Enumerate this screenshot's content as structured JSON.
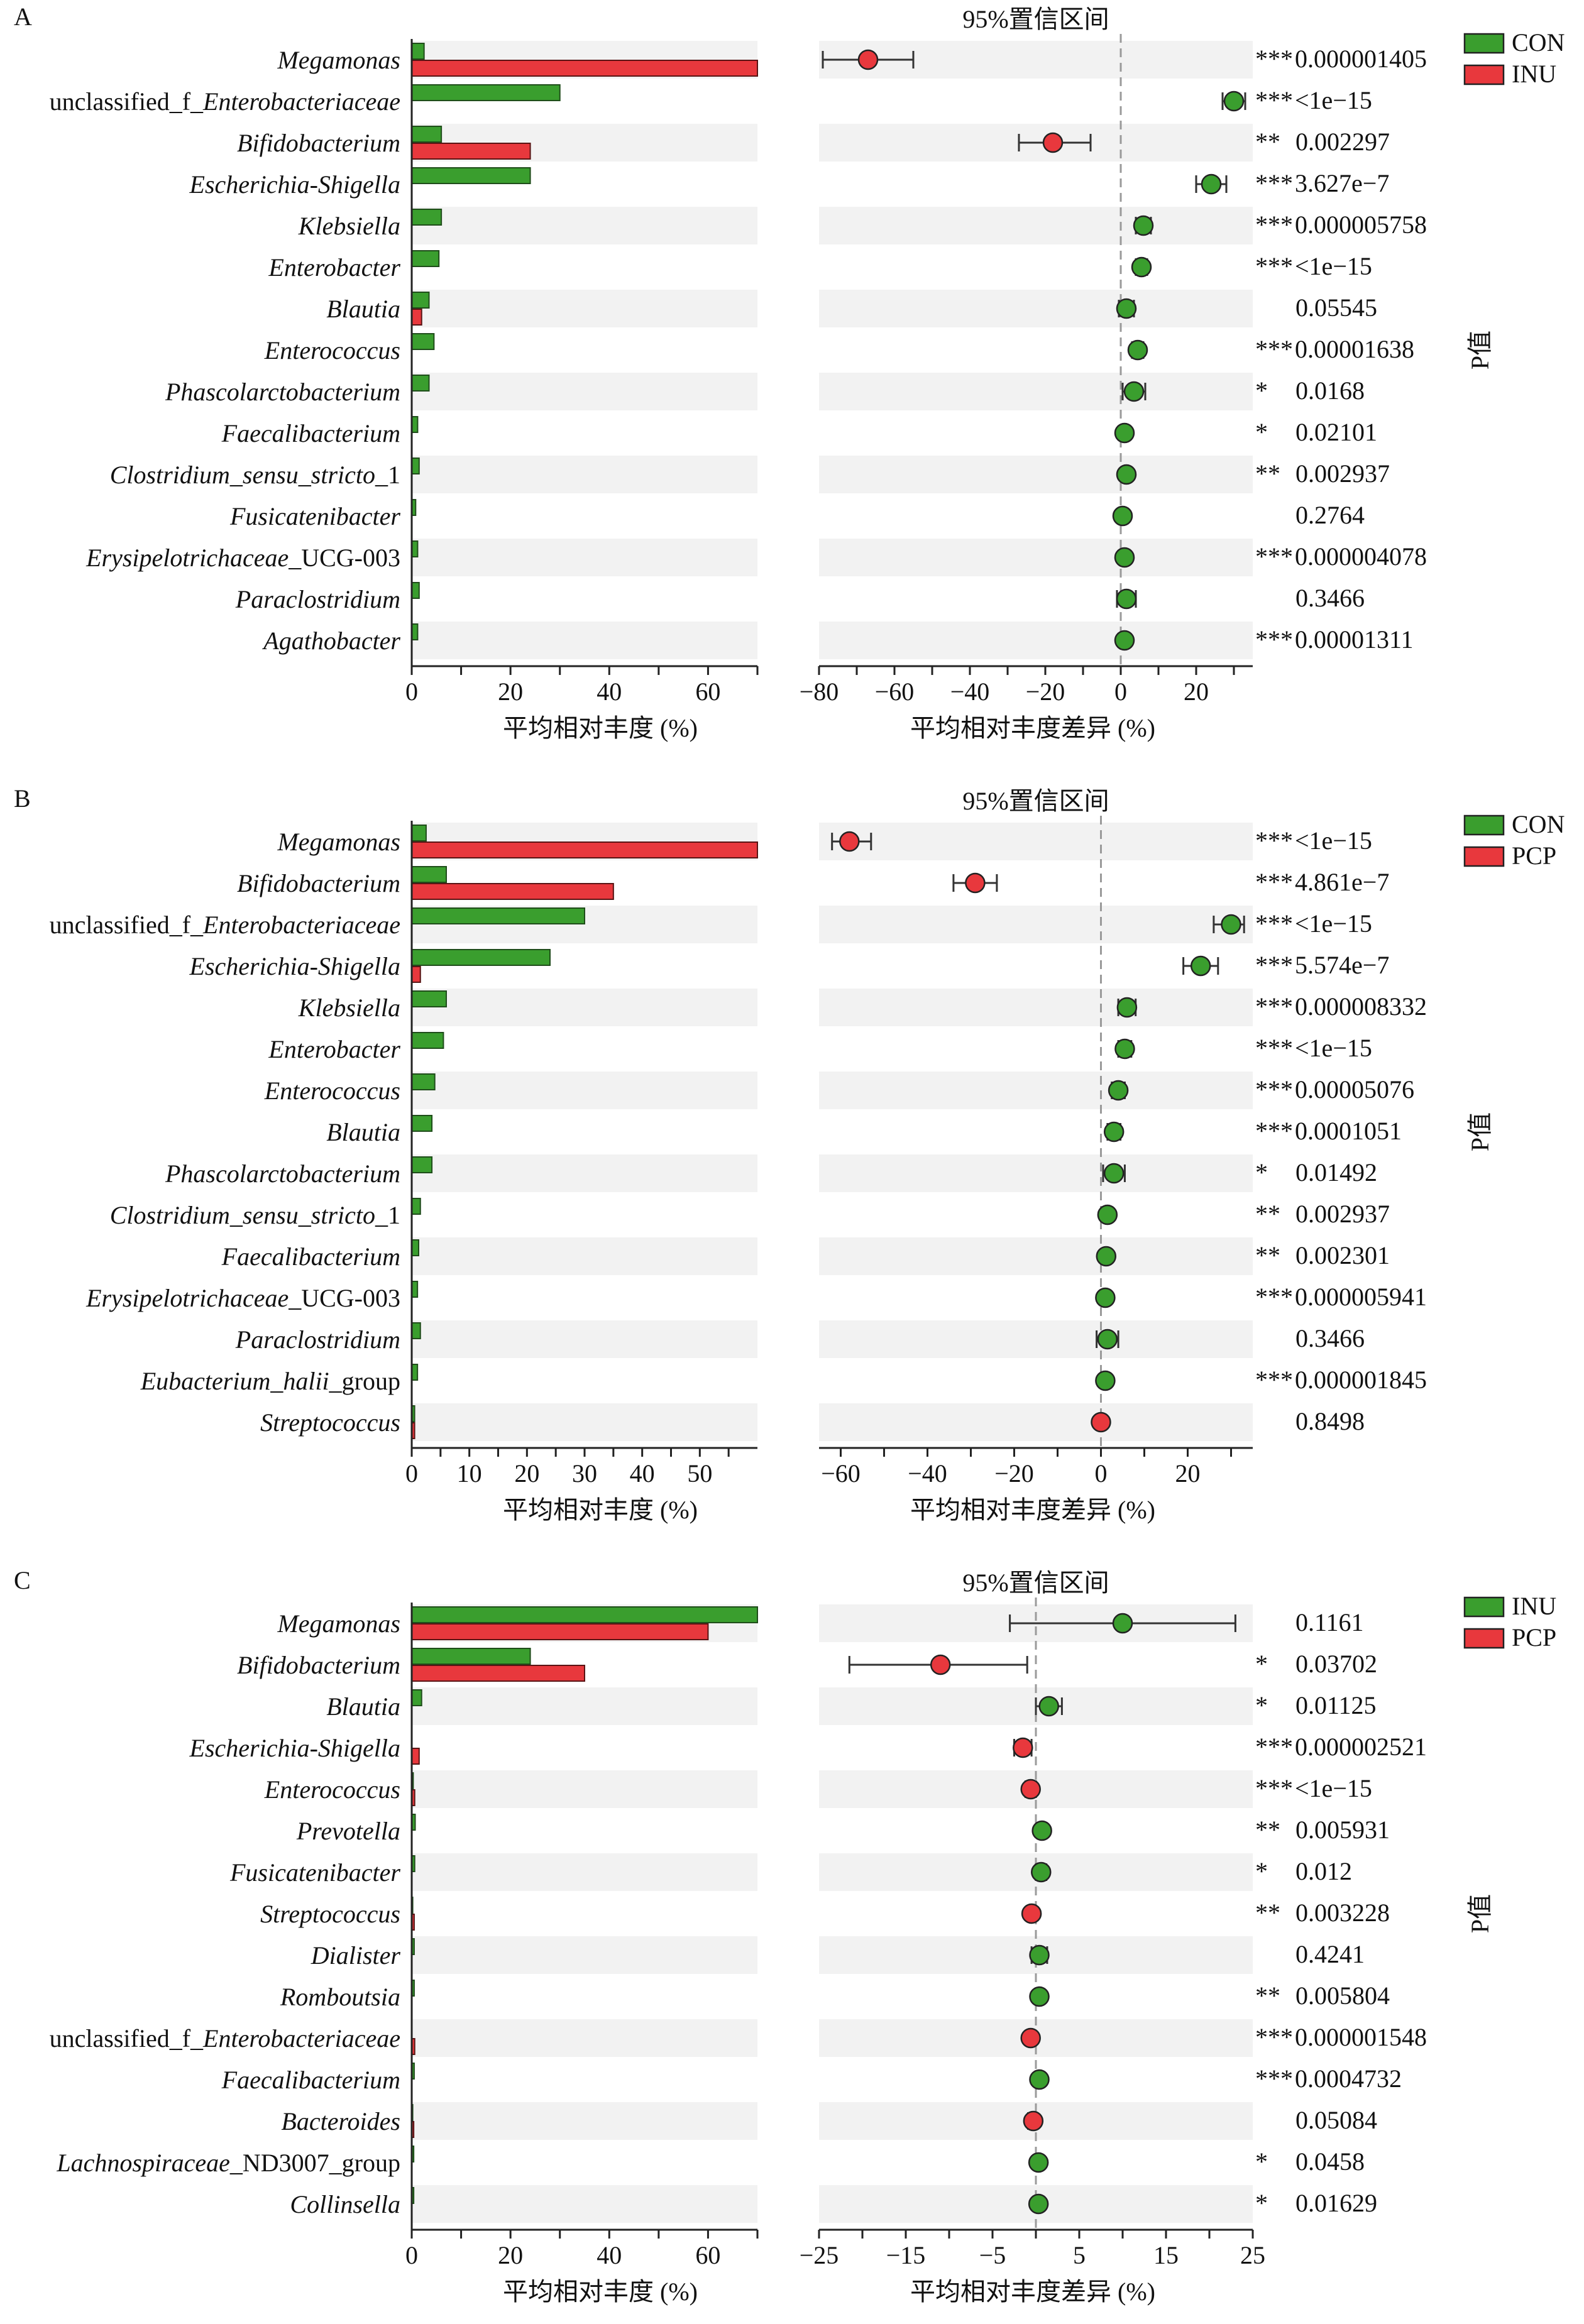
{
  "colors": {
    "green": "#3a9e2e",
    "red": "#e8383d",
    "stripe": "#f2f2f2",
    "dashed": "#9a9a9a",
    "ci_line": "#333333"
  },
  "chart_data": [
    {
      "panel_label": "A",
      "type": "bar",
      "ci_title": "95%置信区间",
      "xlabel_left": "平均相对丰度 (%)",
      "xlabel_right": "平均相对丰度差异 (%)",
      "pvalue_label": "P值",
      "legend": [
        {
          "name": "CON",
          "color": "green"
        },
        {
          "name": "INU",
          "color": "red"
        }
      ],
      "left_axis": {
        "min": 0,
        "max": 70,
        "ticks": [
          0,
          20,
          40,
          60
        ],
        "minor_ticks": [
          10,
          30,
          50,
          70
        ]
      },
      "right_axis": {
        "min": -80,
        "max": 35,
        "ticks": [
          -80,
          -60,
          -40,
          -20,
          0,
          20
        ],
        "minor_ticks": [
          -70,
          -50,
          -30,
          -10,
          10,
          30
        ]
      },
      "rows": [
        {
          "name": "Megamonas",
          "italic": "Megamonas",
          "suffix": "",
          "prefix": "",
          "g1": 2.5,
          "g2": 70,
          "diff": -67,
          "ci": [
            -79,
            -55
          ],
          "dot": "red",
          "stars": "***",
          "p": "0.000001405"
        },
        {
          "name": "unclassified_f_Enterobacteriaceae",
          "prefix": "unclassified_f_",
          "italic": "Enterobacteriaceae",
          "suffix": "",
          "g1": 30,
          "g2": 0,
          "diff": 30,
          "ci": [
            27,
            33
          ],
          "dot": "green",
          "stars": "***",
          "p": "<1e−15"
        },
        {
          "name": "Bifidobacterium",
          "prefix": "",
          "italic": "Bifidobacterium",
          "suffix": "",
          "g1": 6,
          "g2": 24,
          "diff": -18,
          "ci": [
            -27,
            -8
          ],
          "dot": "red",
          "stars": "**",
          "p": "0.002297"
        },
        {
          "name": "Escherichia-Shigella",
          "prefix": "",
          "italic": "Escherichia-Shigella",
          "suffix": "",
          "g1": 24,
          "g2": 0,
          "diff": 24,
          "ci": [
            20,
            28
          ],
          "dot": "green",
          "stars": "***",
          "p": "3.627e−7"
        },
        {
          "name": "Klebsiella",
          "prefix": "",
          "italic": "Klebsiella",
          "suffix": "",
          "g1": 6,
          "g2": 0,
          "diff": 6,
          "ci": [
            4,
            8
          ],
          "dot": "green",
          "stars": "***",
          "p": "0.000005758"
        },
        {
          "name": "Enterobacter",
          "prefix": "",
          "italic": "Enterobacter",
          "suffix": "",
          "g1": 5.5,
          "g2": 0,
          "diff": 5.5,
          "ci": [
            4,
            7
          ],
          "dot": "green",
          "stars": "***",
          "p": "<1e−15"
        },
        {
          "name": "Blautia",
          "prefix": "",
          "italic": "Blautia",
          "suffix": "",
          "g1": 3.5,
          "g2": 2,
          "diff": 1.5,
          "ci": [
            -0.5,
            3.5
          ],
          "dot": "green",
          "stars": "",
          "p": "0.05545"
        },
        {
          "name": "Enterococcus",
          "prefix": "",
          "italic": "Enterococcus",
          "suffix": "",
          "g1": 4.5,
          "g2": 0,
          "diff": 4.5,
          "ci": [
            3,
            6
          ],
          "dot": "green",
          "stars": "***",
          "p": "0.00001638"
        },
        {
          "name": "Phascolarctobacterium",
          "prefix": "",
          "italic": "Phascolarctobacterium",
          "suffix": "",
          "g1": 3.5,
          "g2": 0,
          "diff": 3.5,
          "ci": [
            0.5,
            6.5
          ],
          "dot": "green",
          "stars": "*",
          "p": "0.0168"
        },
        {
          "name": "Faecalibacterium",
          "prefix": "",
          "italic": "Faecalibacterium",
          "suffix": "",
          "g1": 1.2,
          "g2": 0,
          "diff": 1,
          "ci": [
            0,
            2
          ],
          "dot": "green",
          "stars": "*",
          "p": "0.02101"
        },
        {
          "name": "Clostridium_sensu_stricto_1",
          "prefix": "",
          "italic": "Clostridium_sensu_stricto",
          "suffix": "_1",
          "g1": 1.5,
          "g2": 0,
          "diff": 1.5,
          "ci": [
            0.5,
            2.5
          ],
          "dot": "green",
          "stars": "**",
          "p": "0.002937"
        },
        {
          "name": "Fusicatenibacter",
          "prefix": "",
          "italic": "Fusicatenibacter",
          "suffix": "",
          "g1": 0.8,
          "g2": 0,
          "diff": 0.5,
          "ci": [
            -0.5,
            1.5
          ],
          "dot": "green",
          "stars": "",
          "p": "0.2764"
        },
        {
          "name": "Erysipelotrichaceae_UCG-003",
          "prefix": "",
          "italic": "Erysipelotrichaceae",
          "suffix": "_UCG-003",
          "g1": 1.2,
          "g2": 0,
          "diff": 1,
          "ci": [
            0.3,
            1.7
          ],
          "dot": "green",
          "stars": "***",
          "p": "0.000004078"
        },
        {
          "name": "Paraclostridium",
          "prefix": "",
          "italic": "Paraclostridium",
          "suffix": "",
          "g1": 1.5,
          "g2": 0,
          "diff": 1.5,
          "ci": [
            -1,
            4
          ],
          "dot": "green",
          "stars": "",
          "p": "0.3466"
        },
        {
          "name": "Agathobacter",
          "prefix": "",
          "italic": "Agathobacter",
          "suffix": "",
          "g1": 1.2,
          "g2": 0,
          "diff": 1,
          "ci": [
            0.3,
            1.7
          ],
          "dot": "green",
          "stars": "***",
          "p": "0.00001311"
        }
      ]
    },
    {
      "panel_label": "B",
      "type": "bar",
      "ci_title": "95%置信区间",
      "xlabel_left": "平均相对丰度 (%)",
      "xlabel_right": "平均相对丰度差异 (%)",
      "pvalue_label": "P值",
      "legend": [
        {
          "name": "CON",
          "color": "green"
        },
        {
          "name": "PCP",
          "color": "red"
        }
      ],
      "left_axis": {
        "min": 0,
        "max": 60,
        "ticks": [
          0,
          10,
          20,
          30,
          40,
          50
        ],
        "minor_ticks": [
          5,
          15,
          25,
          35,
          45,
          55
        ]
      },
      "right_axis": {
        "min": -65,
        "max": 35,
        "ticks": [
          -60,
          -40,
          -20,
          0,
          20
        ],
        "minor_ticks": [
          -50,
          -30,
          -10,
          10,
          30
        ]
      },
      "rows": [
        {
          "name": "Megamonas",
          "prefix": "",
          "italic": "Megamonas",
          "suffix": "",
          "g1": 2.5,
          "g2": 60,
          "diff": -58,
          "ci": [
            -62,
            -53
          ],
          "dot": "red",
          "stars": "***",
          "p": "<1e−15"
        },
        {
          "name": "Bifidobacterium",
          "prefix": "",
          "italic": "Bifidobacterium",
          "suffix": "",
          "g1": 6,
          "g2": 35,
          "diff": -29,
          "ci": [
            -34,
            -24
          ],
          "dot": "red",
          "stars": "***",
          "p": "4.861e−7"
        },
        {
          "name": "unclassified_f_Enterobacteriaceae",
          "prefix": "unclassified_f_",
          "italic": "Enterobacteriaceae",
          "suffix": "",
          "g1": 30,
          "g2": 0,
          "diff": 30,
          "ci": [
            26,
            33
          ],
          "dot": "green",
          "stars": "***",
          "p": "<1e−15"
        },
        {
          "name": "Escherichia-Shigella",
          "prefix": "",
          "italic": "Escherichia-Shigella",
          "suffix": "",
          "g1": 24,
          "g2": 1.5,
          "diff": 23,
          "ci": [
            19,
            27
          ],
          "dot": "green",
          "stars": "***",
          "p": "5.574e−7"
        },
        {
          "name": "Klebsiella",
          "prefix": "",
          "italic": "Klebsiella",
          "suffix": "",
          "g1": 6,
          "g2": 0,
          "diff": 6,
          "ci": [
            4,
            8
          ],
          "dot": "green",
          "stars": "***",
          "p": "0.000008332"
        },
        {
          "name": "Enterobacter",
          "prefix": "",
          "italic": "Enterobacter",
          "suffix": "",
          "g1": 5.5,
          "g2": 0,
          "diff": 5.5,
          "ci": [
            4,
            7
          ],
          "dot": "green",
          "stars": "***",
          "p": "<1e−15"
        },
        {
          "name": "Enterococcus",
          "prefix": "",
          "italic": "Enterococcus",
          "suffix": "",
          "g1": 4,
          "g2": 0,
          "diff": 4,
          "ci": [
            2.5,
            5.5
          ],
          "dot": "green",
          "stars": "***",
          "p": "0.00005076"
        },
        {
          "name": "Blautia",
          "prefix": "",
          "italic": "Blautia",
          "suffix": "",
          "g1": 3.5,
          "g2": 0,
          "diff": 3,
          "ci": [
            1.5,
            4.5
          ],
          "dot": "green",
          "stars": "***",
          "p": "0.0001051"
        },
        {
          "name": "Phascolarctobacterium",
          "prefix": "",
          "italic": "Phascolarctobacterium",
          "suffix": "",
          "g1": 3.5,
          "g2": 0,
          "diff": 3,
          "ci": [
            0.5,
            5.5
          ],
          "dot": "green",
          "stars": "*",
          "p": "0.01492"
        },
        {
          "name": "Clostridium_sensu_stricto_1",
          "prefix": "",
          "italic": "Clostridium_sensu_stricto",
          "suffix": "_1",
          "g1": 1.5,
          "g2": 0,
          "diff": 1.5,
          "ci": [
            0.5,
            2.5
          ],
          "dot": "green",
          "stars": "**",
          "p": "0.002937"
        },
        {
          "name": "Faecalibacterium",
          "prefix": "",
          "italic": "Faecalibacterium",
          "suffix": "",
          "g1": 1.2,
          "g2": 0,
          "diff": 1.2,
          "ci": [
            0.4,
            2
          ],
          "dot": "green",
          "stars": "**",
          "p": "0.002301"
        },
        {
          "name": "Erysipelotrichaceae_UCG-003",
          "prefix": "",
          "italic": "Erysipelotrichaceae",
          "suffix": "_UCG-003",
          "g1": 1,
          "g2": 0,
          "diff": 1,
          "ci": [
            0.3,
            1.7
          ],
          "dot": "green",
          "stars": "***",
          "p": "0.000005941"
        },
        {
          "name": "Paraclostridium",
          "prefix": "",
          "italic": "Paraclostridium",
          "suffix": "",
          "g1": 1.5,
          "g2": 0,
          "diff": 1.5,
          "ci": [
            -1,
            4
          ],
          "dot": "green",
          "stars": "",
          "p": "0.3466"
        },
        {
          "name": "Eubacterium_halii_group",
          "prefix": "",
          "italic": "Eubacterium_halii",
          "suffix": "_group",
          "g1": 1,
          "g2": 0,
          "diff": 1,
          "ci": [
            0.3,
            1.7
          ],
          "dot": "green",
          "stars": "***",
          "p": "0.000001845"
        },
        {
          "name": "Streptococcus",
          "prefix": "",
          "italic": "Streptococcus",
          "suffix": "",
          "g1": 0.5,
          "g2": 0.5,
          "diff": 0,
          "ci": [
            -1,
            1
          ],
          "dot": "red",
          "stars": "",
          "p": "0.8498"
        }
      ]
    },
    {
      "panel_label": "C",
      "type": "bar",
      "ci_title": "95%置信区间",
      "xlabel_left": "平均相对丰度 (%)",
      "xlabel_right": "平均相对丰度差异 (%)",
      "pvalue_label": "P值",
      "legend": [
        {
          "name": "INU",
          "color": "green"
        },
        {
          "name": "PCP",
          "color": "red"
        }
      ],
      "left_axis": {
        "min": 0,
        "max": 70,
        "ticks": [
          0,
          20,
          40,
          60
        ],
        "minor_ticks": [
          10,
          30,
          50,
          70
        ]
      },
      "right_axis": {
        "min": -25,
        "max": 25,
        "ticks": [
          -25,
          -15,
          -5,
          5,
          15,
          25
        ],
        "minor_ticks": [
          -20,
          -10,
          0,
          10,
          20
        ]
      },
      "rows": [
        {
          "name": "Megamonas",
          "prefix": "",
          "italic": "Megamonas",
          "suffix": "",
          "g1": 70,
          "g2": 60,
          "diff": 10,
          "ci": [
            -3,
            23
          ],
          "dot": "green",
          "stars": "",
          "p": "0.1161"
        },
        {
          "name": "Bifidobacterium",
          "prefix": "",
          "italic": "Bifidobacterium",
          "suffix": "",
          "g1": 24,
          "g2": 35,
          "diff": -11,
          "ci": [
            -21.5,
            -1
          ],
          "dot": "red",
          "stars": "*",
          "p": "0.03702"
        },
        {
          "name": "Blautia",
          "prefix": "",
          "italic": "Blautia",
          "suffix": "",
          "g1": 2,
          "g2": 0,
          "diff": 1.5,
          "ci": [
            0,
            3
          ],
          "dot": "green",
          "stars": "*",
          "p": "0.01125"
        },
        {
          "name": "Escherichia-Shigella",
          "prefix": "",
          "italic": "Escherichia-Shigella",
          "suffix": "",
          "g1": 0,
          "g2": 1.5,
          "diff": -1.5,
          "ci": [
            -2.5,
            -0.5
          ],
          "dot": "red",
          "stars": "***",
          "p": "0.000002521"
        },
        {
          "name": "Enterococcus",
          "prefix": "",
          "italic": "Enterococcus",
          "suffix": "",
          "g1": 0.3,
          "g2": 0.6,
          "diff": -0.6,
          "ci": [
            -1.2,
            0
          ],
          "dot": "red",
          "stars": "***",
          "p": "<1e−15"
        },
        {
          "name": "Prevotella",
          "prefix": "",
          "italic": "Prevotella",
          "suffix": "",
          "g1": 0.7,
          "g2": 0,
          "diff": 0.7,
          "ci": [
            0.2,
            1.2
          ],
          "dot": "green",
          "stars": "**",
          "p": "0.005931"
        },
        {
          "name": "Fusicatenibacter",
          "prefix": "",
          "italic": "Fusicatenibacter",
          "suffix": "",
          "g1": 0.6,
          "g2": 0,
          "diff": 0.6,
          "ci": [
            0,
            1.2
          ],
          "dot": "green",
          "stars": "*",
          "p": "0.012"
        },
        {
          "name": "Streptococcus",
          "prefix": "",
          "italic": "Streptococcus",
          "suffix": "",
          "g1": 0.2,
          "g2": 0.5,
          "diff": -0.5,
          "ci": [
            -1,
            0
          ],
          "dot": "red",
          "stars": "**",
          "p": "0.003228"
        },
        {
          "name": "Dialister",
          "prefix": "",
          "italic": "Dialister",
          "suffix": "",
          "g1": 0.5,
          "g2": 0,
          "diff": 0.4,
          "ci": [
            -0.5,
            1.3
          ],
          "dot": "green",
          "stars": "",
          "p": "0.4241"
        },
        {
          "name": "Romboutsia",
          "prefix": "",
          "italic": "Romboutsia",
          "suffix": "",
          "g1": 0.5,
          "g2": 0,
          "diff": 0.4,
          "ci": [
            0.1,
            0.8
          ],
          "dot": "green",
          "stars": "**",
          "p": "0.005804"
        },
        {
          "name": "unclassified_f_Enterobacteriaceae",
          "prefix": "unclassified_f_",
          "italic": "Enterobacteriaceae",
          "suffix": "",
          "g1": 0,
          "g2": 0.6,
          "diff": -0.6,
          "ci": [
            -1,
            -0.2
          ],
          "dot": "red",
          "stars": "***",
          "p": "0.000001548"
        },
        {
          "name": "Faecalibacterium",
          "prefix": "",
          "italic": "Faecalibacterium",
          "suffix": "",
          "g1": 0.5,
          "g2": 0,
          "diff": 0.4,
          "ci": [
            0.1,
            0.7
          ],
          "dot": "green",
          "stars": "***",
          "p": "0.0004732"
        },
        {
          "name": "Bacteroides",
          "prefix": "",
          "italic": "Bacteroides",
          "suffix": "",
          "g1": 0.2,
          "g2": 0.4,
          "diff": -0.3,
          "ci": [
            -0.9,
            0.1
          ],
          "dot": "red",
          "stars": "",
          "p": "0.05084"
        },
        {
          "name": "Lachnospiraceae_ND3007_group",
          "prefix": "",
          "italic": "Lachnospiraceae",
          "suffix": "_ND3007_group",
          "g1": 0.4,
          "g2": 0,
          "diff": 0.3,
          "ci": [
            0,
            0.6
          ],
          "dot": "green",
          "stars": "*",
          "p": "0.0458"
        },
        {
          "name": "Collinsella",
          "prefix": "",
          "italic": "Collinsella",
          "suffix": "",
          "g1": 0.4,
          "g2": 0,
          "diff": 0.3,
          "ci": [
            0,
            0.6
          ],
          "dot": "green",
          "stars": "*",
          "p": "0.01629"
        }
      ]
    }
  ]
}
